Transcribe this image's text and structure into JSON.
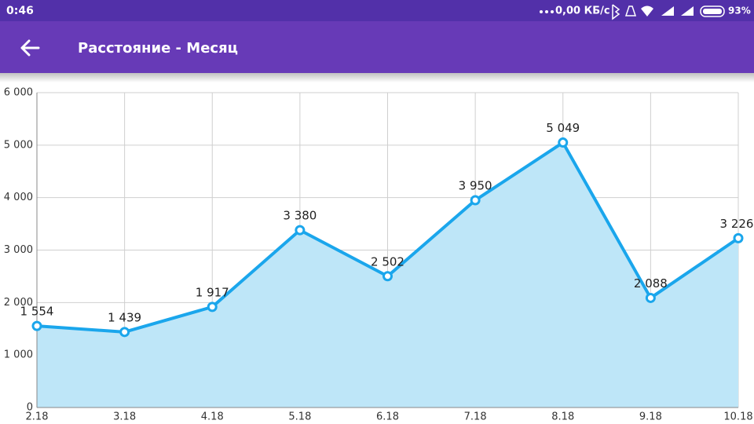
{
  "status_bar": {
    "time": "0:46",
    "network_speed": "0,00 КБ/с",
    "battery": "93%"
  },
  "app_bar": {
    "title": "Расстояние - Месяц"
  },
  "chart_data": {
    "type": "area-line",
    "categories": [
      "2.18",
      "3.18",
      "4.18",
      "5.18",
      "6.18",
      "7.18",
      "8.18",
      "9.18",
      "10.18"
    ],
    "values": [
      1554,
      1439,
      1917,
      3380,
      2502,
      3950,
      5049,
      2088,
      3226
    ],
    "value_labels": [
      "1 554",
      "1 439",
      "1 917",
      "3 380",
      "2 502",
      "3 950",
      "5 049",
      "2 088",
      "3 226"
    ],
    "color": "#1aa6ec",
    "fill_color": "#bee6f8",
    "ylim": [
      0,
      6000
    ],
    "yticks": [
      {
        "value": 0,
        "label": "0"
      },
      {
        "value": 1000,
        "label": "1 000"
      },
      {
        "value": 2000,
        "label": "2 000"
      },
      {
        "value": 3000,
        "label": "3 000"
      },
      {
        "value": 4000,
        "label": "4 000"
      },
      {
        "value": 5000,
        "label": "5 000"
      },
      {
        "value": 6000,
        "label": "6 000"
      }
    ],
    "grid": true
  }
}
